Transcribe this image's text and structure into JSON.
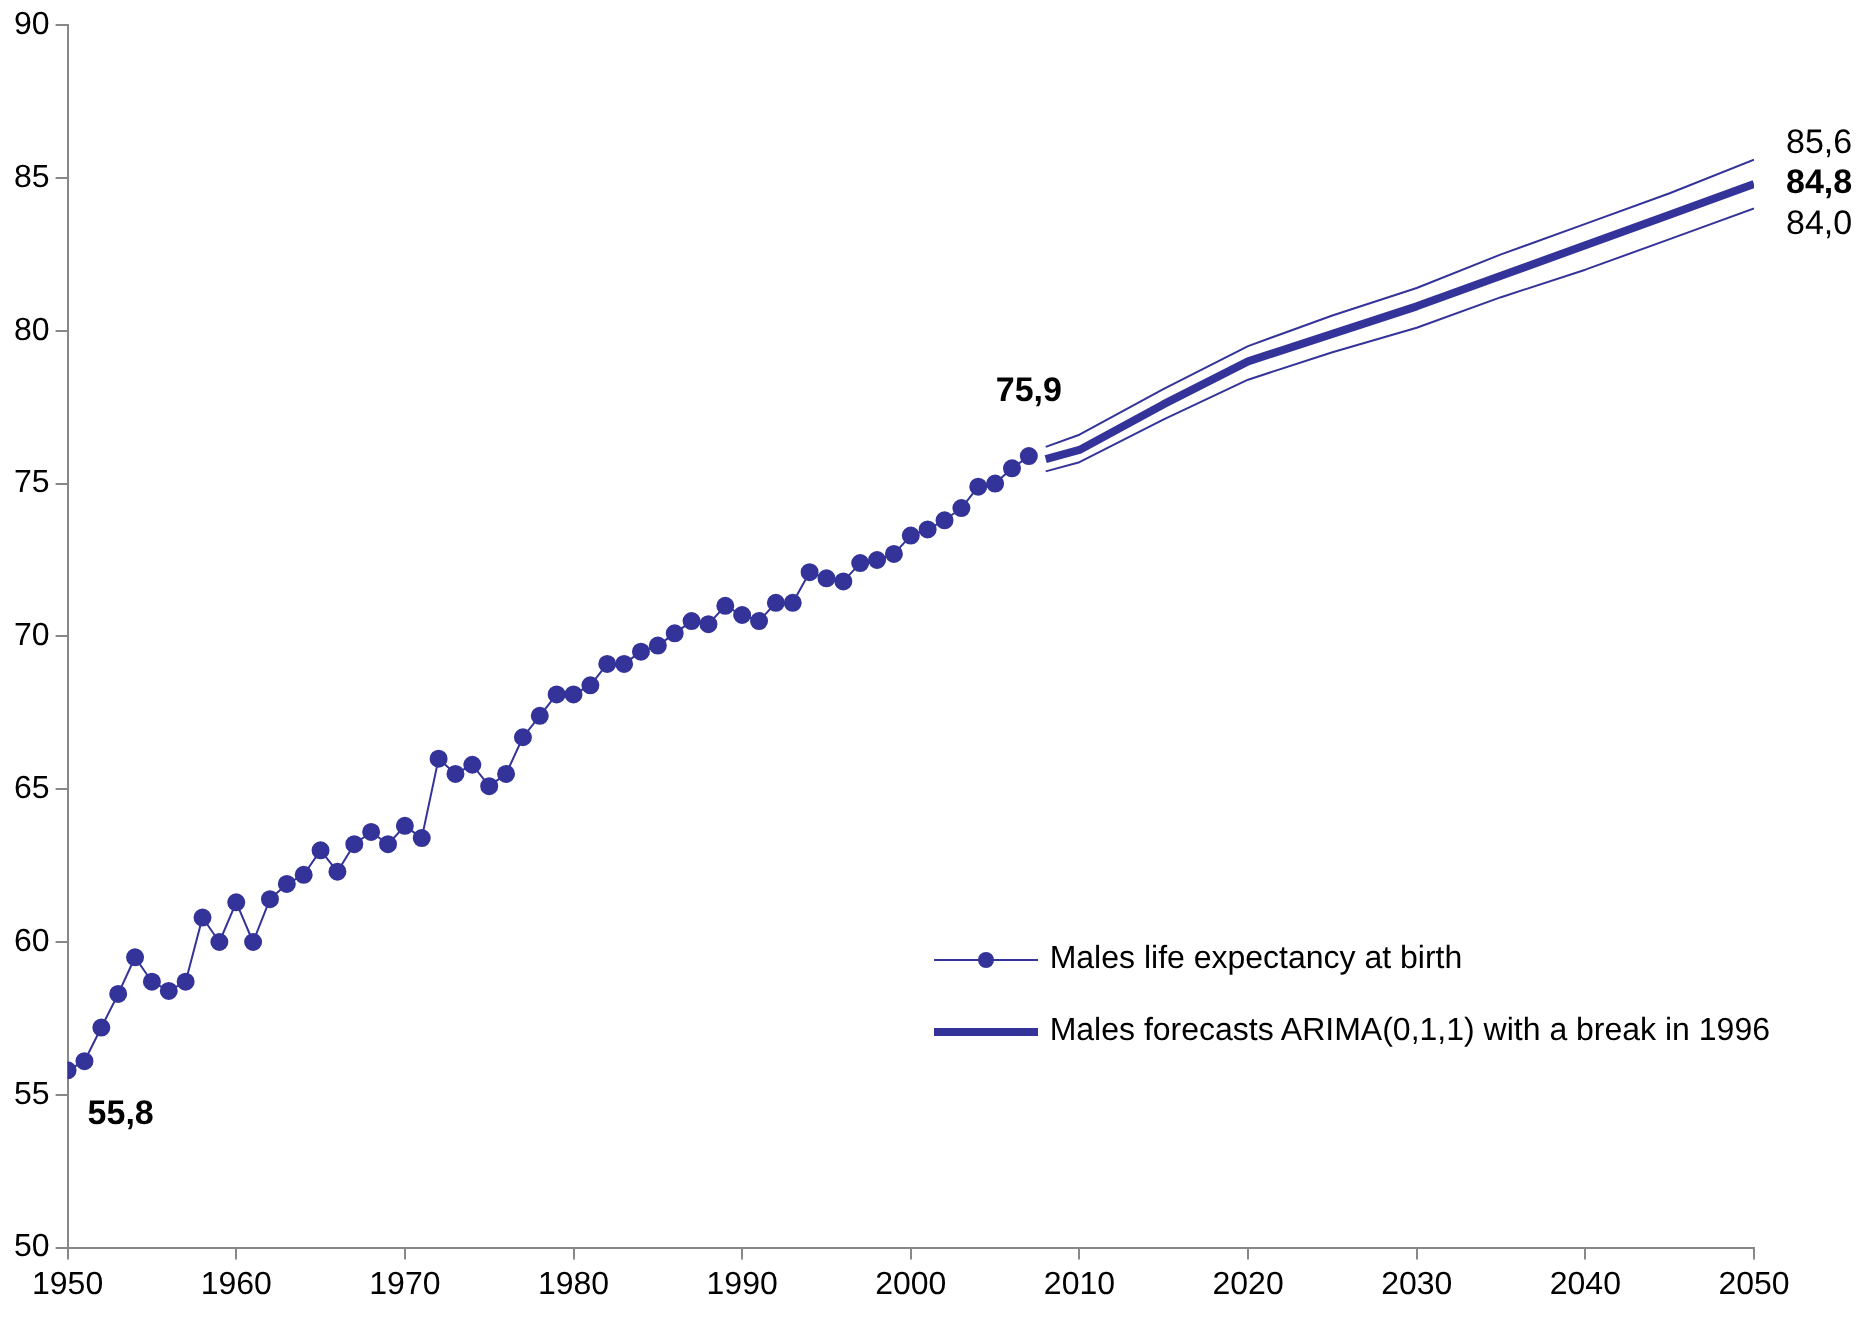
{
  "chart_data": {
    "type": "line",
    "x": [
      1950,
      1951,
      1952,
      1953,
      1954,
      1955,
      1956,
      1957,
      1958,
      1959,
      1960,
      1961,
      1962,
      1963,
      1964,
      1965,
      1966,
      1967,
      1968,
      1969,
      1970,
      1971,
      1972,
      1973,
      1974,
      1975,
      1976,
      1977,
      1978,
      1979,
      1980,
      1981,
      1982,
      1983,
      1984,
      1985,
      1986,
      1987,
      1988,
      1989,
      1990,
      1991,
      1992,
      1993,
      1994,
      1995,
      1996,
      1997,
      1998,
      1999,
      2000,
      2001,
      2002,
      2003,
      2004,
      2005,
      2006,
      2007
    ],
    "series": [
      {
        "name": "Males life expectancy at birth",
        "color": "#333399",
        "marker": "circle",
        "values": [
          55.8,
          56.1,
          57.2,
          58.3,
          59.5,
          58.7,
          58.4,
          58.7,
          60.8,
          60.0,
          61.3,
          60.0,
          61.4,
          61.9,
          62.2,
          63.0,
          62.3,
          63.2,
          63.6,
          63.2,
          63.8,
          63.4,
          66.0,
          65.5,
          65.8,
          65.1,
          65.5,
          66.7,
          67.4,
          68.1,
          68.1,
          68.4,
          69.1,
          69.1,
          69.5,
          69.7,
          70.1,
          70.5,
          70.4,
          71.0,
          70.7,
          70.5,
          71.1,
          71.1,
          72.1,
          71.9,
          71.8,
          72.4,
          72.5,
          72.7,
          73.3,
          73.5,
          73.8,
          74.2,
          74.9,
          75.0,
          75.5,
          75.9
        ]
      },
      {
        "name": "Males forecasts ARIMA(0,1,1) with a break in 1996",
        "color": "#333399",
        "marker": "none",
        "x": [
          2008,
          2010,
          2015,
          2020,
          2025,
          2030,
          2035,
          2040,
          2045,
          2050
        ],
        "values": [
          75.8,
          76.1,
          77.6,
          79.0,
          79.9,
          80.8,
          81.8,
          82.8,
          83.8,
          84.8
        ]
      },
      {
        "color": "#333399",
        "marker": "none",
        "x": [
          2008,
          2010,
          2015,
          2020,
          2025,
          2030,
          2035,
          2040,
          2045,
          2050
        ],
        "values": [
          76.2,
          76.6,
          78.1,
          79.5,
          80.5,
          81.4,
          82.5,
          83.5,
          84.5,
          85.6
        ]
      },
      {
        "color": "#333399",
        "marker": "none",
        "x": [
          2008,
          2010,
          2015,
          2020,
          2025,
          2030,
          2035,
          2040,
          2045,
          2050
        ],
        "values": [
          75.4,
          75.7,
          77.1,
          78.4,
          79.3,
          80.1,
          81.1,
          82.0,
          83.0,
          84.0
        ]
      }
    ],
    "xlim": [
      1950,
      2050
    ],
    "xticks": [
      1950,
      1960,
      1970,
      1980,
      1990,
      2000,
      2010,
      2020,
      2030,
      2040,
      2050
    ],
    "ylim": [
      50,
      90
    ],
    "yticks": [
      50,
      55,
      60,
      65,
      70,
      75,
      80,
      85,
      90
    ],
    "grid": false,
    "legend": "bottom right",
    "annotations": [
      {
        "text": "55,8",
        "x": 1950,
        "y": 55.8
      },
      {
        "text": "75,9",
        "x": 2007,
        "y": 75.9
      },
      {
        "text": "85,6",
        "x": 2050,
        "y": 85.6
      },
      {
        "text": "84,8",
        "x": 2050,
        "y": 84.8
      },
      {
        "text": "84,0",
        "x": 2050,
        "y": 84.0
      }
    ]
  }
}
